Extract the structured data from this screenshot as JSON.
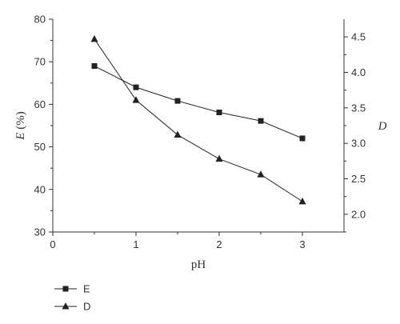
{
  "chart_data": {
    "type": "line",
    "xlabel": "pH",
    "ylabel_left": {
      "symbol": "E",
      "unit": " (%)"
    },
    "ylabel_right": "D",
    "xlim": [
      0,
      3.5
    ],
    "ylim_left": [
      30,
      80
    ],
    "ylim_right": [
      1.75,
      4.75
    ],
    "x_ticks": [
      "0",
      "1",
      "2",
      "3"
    ],
    "y_left_ticks": [
      "30",
      "40",
      "50",
      "60",
      "70",
      "80"
    ],
    "y_right_ticks": [
      "2.0",
      "2.5",
      "3.0",
      "3.5",
      "4.0",
      "4.5"
    ],
    "grid": false,
    "legend_position": "bottom-left",
    "series": [
      {
        "name": "E",
        "axis": "left",
        "marker": "square",
        "x": [
          0.5,
          1.0,
          1.5,
          2.0,
          2.5,
          3.0
        ],
        "values": [
          69.0,
          64.0,
          60.8,
          58.1,
          56.1,
          52.0
        ]
      },
      {
        "name": "D",
        "axis": "right",
        "marker": "triangle",
        "x": [
          0.5,
          1.0,
          1.5,
          2.0,
          2.5,
          3.0
        ],
        "values": [
          4.47,
          3.61,
          3.12,
          2.78,
          2.56,
          2.18
        ]
      }
    ]
  },
  "colors": {
    "line": "#222222",
    "axis": "#333333",
    "text": "#333333"
  }
}
